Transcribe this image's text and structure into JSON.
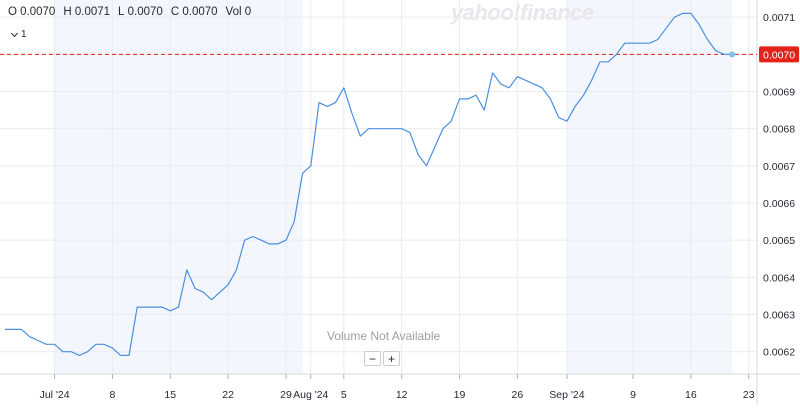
{
  "ohlc": {
    "open_label": "O",
    "open": "0.0070",
    "high_label": "H",
    "high": "0.0071",
    "low_label": "L",
    "low": "0.0070",
    "close_label": "C",
    "close": "0.0070",
    "vol_label": "Vol",
    "vol": "0"
  },
  "interval_value": "1",
  "watermark": "yahoo!finance",
  "volume_text": "Volume Not Available",
  "zoom": {
    "minus": "−",
    "plus": "+"
  },
  "colors": {
    "line": "#4a8fe0",
    "last_price": "#e2231a",
    "shade": "#f3f6fc",
    "grid": "#e9ecf0"
  },
  "chart_data": {
    "type": "line",
    "title": "",
    "xlabel": "",
    "ylabel": "",
    "ylim": [
      0.00614,
      0.00713
    ],
    "y_ticks": [
      0.0062,
      0.0063,
      0.0064,
      0.0065,
      0.0066,
      0.0067,
      0.0068,
      0.0069,
      0.007,
      0.0071
    ],
    "x_ticks": [
      {
        "date": "2024-07-01",
        "label": "Jul '24"
      },
      {
        "date": "2024-07-08",
        "label": "8"
      },
      {
        "date": "2024-07-15",
        "label": "15"
      },
      {
        "date": "2024-07-22",
        "label": "22"
      },
      {
        "date": "2024-07-29",
        "label": "29"
      },
      {
        "date": "2024-08-01",
        "label": "Aug '24"
      },
      {
        "date": "2024-08-05",
        "label": "5"
      },
      {
        "date": "2024-08-12",
        "label": "12"
      },
      {
        "date": "2024-08-19",
        "label": "19"
      },
      {
        "date": "2024-08-26",
        "label": "26"
      },
      {
        "date": "2024-09-01",
        "label": "Sep '24"
      },
      {
        "date": "2024-09-09",
        "label": "9"
      },
      {
        "date": "2024-09-16",
        "label": "16"
      },
      {
        "date": "2024-09-23",
        "label": "23"
      }
    ],
    "x_range": [
      "2024-06-25",
      "2024-09-24"
    ],
    "shaded_ranges": [
      [
        "2024-07-01",
        "2024-07-31"
      ],
      [
        "2024-09-01",
        "2024-09-21"
      ]
    ],
    "last_price_label": "0.0070",
    "last_price": 0.007,
    "grid": true,
    "series": [
      {
        "x": [
          "2024-06-25",
          "2024-06-26",
          "2024-06-27",
          "2024-06-28",
          "2024-06-29",
          "2024-06-30",
          "2024-07-01",
          "2024-07-02",
          "2024-07-03",
          "2024-07-04",
          "2024-07-05",
          "2024-07-06",
          "2024-07-07",
          "2024-07-08",
          "2024-07-09",
          "2024-07-10",
          "2024-07-11",
          "2024-07-12",
          "2024-07-13",
          "2024-07-14",
          "2024-07-15",
          "2024-07-16",
          "2024-07-17",
          "2024-07-18",
          "2024-07-19",
          "2024-07-20",
          "2024-07-21",
          "2024-07-22",
          "2024-07-23",
          "2024-07-24",
          "2024-07-25",
          "2024-07-26",
          "2024-07-27",
          "2024-07-28",
          "2024-07-29",
          "2024-07-30",
          "2024-07-31",
          "2024-08-01",
          "2024-08-02",
          "2024-08-03",
          "2024-08-04",
          "2024-08-05",
          "2024-08-06",
          "2024-08-07",
          "2024-08-08",
          "2024-08-09",
          "2024-08-10",
          "2024-08-11",
          "2024-08-12",
          "2024-08-13",
          "2024-08-14",
          "2024-08-15",
          "2024-08-16",
          "2024-08-17",
          "2024-08-18",
          "2024-08-19",
          "2024-08-20",
          "2024-08-21",
          "2024-08-22",
          "2024-08-23",
          "2024-08-24",
          "2024-08-25",
          "2024-08-26",
          "2024-08-27",
          "2024-08-28",
          "2024-08-29",
          "2024-08-30",
          "2024-08-31",
          "2024-09-01",
          "2024-09-02",
          "2024-09-03",
          "2024-09-04",
          "2024-09-05",
          "2024-09-06",
          "2024-09-07",
          "2024-09-08",
          "2024-09-09",
          "2024-09-10",
          "2024-09-11",
          "2024-09-12",
          "2024-09-13",
          "2024-09-14",
          "2024-09-15",
          "2024-09-16",
          "2024-09-17",
          "2024-09-18",
          "2024-09-19",
          "2024-09-20",
          "2024-09-21"
        ],
        "values": [
          0.00626,
          0.00626,
          0.00626,
          0.00624,
          0.00623,
          0.00622,
          0.00622,
          0.0062,
          0.0062,
          0.00619,
          0.0062,
          0.00622,
          0.00622,
          0.00621,
          0.00619,
          0.00619,
          0.00632,
          0.00632,
          0.00632,
          0.00632,
          0.00631,
          0.00632,
          0.00642,
          0.00637,
          0.00636,
          0.00634,
          0.00636,
          0.00638,
          0.00642,
          0.0065,
          0.00651,
          0.0065,
          0.00649,
          0.00649,
          0.0065,
          0.00655,
          0.00668,
          0.0067,
          0.00687,
          0.00686,
          0.00687,
          0.00691,
          0.00684,
          0.00678,
          0.0068,
          0.0068,
          0.0068,
          0.0068,
          0.0068,
          0.00679,
          0.00673,
          0.0067,
          0.00675,
          0.0068,
          0.00682,
          0.00688,
          0.00688,
          0.00689,
          0.00685,
          0.00695,
          0.00692,
          0.00691,
          0.00694,
          0.00693,
          0.00692,
          0.00691,
          0.00688,
          0.00683,
          0.00682,
          0.00686,
          0.00689,
          0.00693,
          0.00698,
          0.00698,
          0.007,
          0.00703,
          0.00703,
          0.00703,
          0.00703,
          0.00704,
          0.00707,
          0.0071,
          0.00711,
          0.00711,
          0.00708,
          0.00704,
          0.00701,
          0.007,
          0.007
        ]
      }
    ]
  }
}
